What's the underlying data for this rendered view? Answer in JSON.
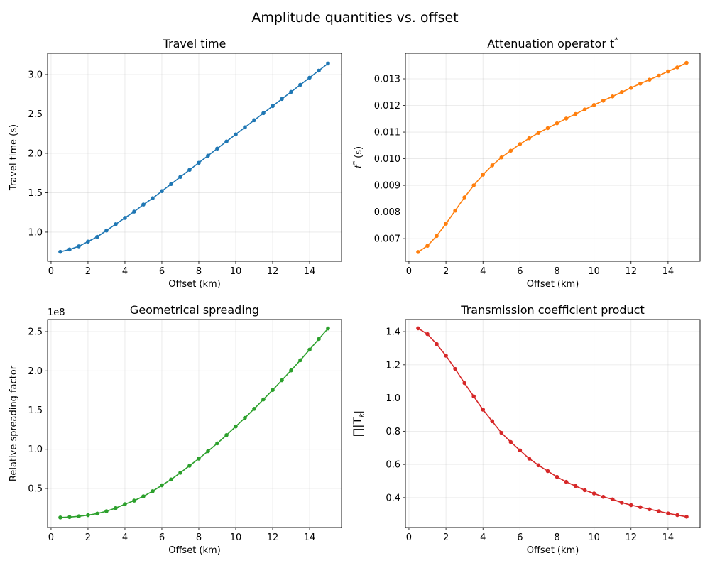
{
  "suptitle": "Amplitude quantities vs. offset",
  "chart_data": [
    {
      "type": "line",
      "title": "Travel time",
      "xlabel": "Offset (km)",
      "ylabel": "Travel time (s)",
      "color": "#1f77b4",
      "grid": true,
      "xlim": [
        -0.19,
        15.73
      ],
      "ylim": [
        0.63,
        3.27
      ],
      "xticks": [
        0,
        2,
        4,
        6,
        8,
        10,
        12,
        14
      ],
      "yticks": [
        1.0,
        1.5,
        2.0,
        2.5,
        3.0
      ],
      "ytick_decimals": 1,
      "offset_label": "",
      "x": [
        0.5,
        1,
        1.5,
        2,
        2.5,
        3,
        3.5,
        4,
        4.5,
        5,
        5.5,
        6,
        6.5,
        7,
        7.5,
        8,
        8.5,
        9,
        9.5,
        10,
        10.5,
        11,
        11.5,
        12,
        12.5,
        13,
        13.5,
        14,
        14.5,
        15
      ],
      "y": [
        0.75,
        0.78,
        0.82,
        0.88,
        0.94,
        1.02,
        1.1,
        1.18,
        1.26,
        1.35,
        1.43,
        1.52,
        1.61,
        1.7,
        1.79,
        1.88,
        1.97,
        2.06,
        2.15,
        2.24,
        2.33,
        2.42,
        2.51,
        2.6,
        2.69,
        2.78,
        2.87,
        2.96,
        3.05,
        3.14
      ]
    },
    {
      "type": "line",
      "title": "Attenuation operator t",
      "title_sup": "*",
      "xlabel": "Offset (km)",
      "ylabel": "t",
      "ylabel_sup": "*",
      "ylabel_suffix": " (s)",
      "color": "#ff7f0e",
      "grid": true,
      "xlim": [
        -0.19,
        15.73
      ],
      "ylim": [
        0.00615,
        0.01396
      ],
      "xticks": [
        0,
        2,
        4,
        6,
        8,
        10,
        12,
        14
      ],
      "yticks": [
        0.007,
        0.008,
        0.009,
        0.01,
        0.011,
        0.012,
        0.013
      ],
      "ytick_decimals": 3,
      "offset_label": "",
      "x": [
        0.5,
        1,
        1.5,
        2,
        2.5,
        3,
        3.5,
        4,
        4.5,
        5,
        5.5,
        6,
        6.5,
        7,
        7.5,
        8,
        8.5,
        9,
        9.5,
        10,
        10.5,
        11,
        11.5,
        12,
        12.5,
        13,
        13.5,
        14,
        14.5,
        15
      ],
      "y": [
        0.0065,
        0.00673,
        0.0071,
        0.00756,
        0.00805,
        0.00855,
        0.009,
        0.0094,
        0.00975,
        0.01005,
        0.0103,
        0.01055,
        0.01077,
        0.01097,
        0.01115,
        0.01133,
        0.01151,
        0.01168,
        0.01185,
        0.01202,
        0.01218,
        0.01234,
        0.0125,
        0.01266,
        0.01282,
        0.01297,
        0.01312,
        0.01328,
        0.01343,
        0.0136
      ]
    },
    {
      "type": "line",
      "title": "Geometrical spreading",
      "xlabel": "Offset (km)",
      "ylabel": "Relative spreading factor",
      "color": "#2ca02c",
      "grid": true,
      "xlim": [
        -0.19,
        15.73
      ],
      "ylim": [
        0.002,
        2.654
      ],
      "xticks": [
        0,
        2,
        4,
        6,
        8,
        10,
        12,
        14
      ],
      "yticks": [
        0.5,
        1.0,
        1.5,
        2.0,
        2.5
      ],
      "ytick_decimals": 1,
      "offset_label": "1e8",
      "x": [
        0.5,
        1,
        1.5,
        2,
        2.5,
        3,
        3.5,
        4,
        4.5,
        5,
        5.5,
        6,
        6.5,
        7,
        7.5,
        8,
        8.5,
        9,
        9.5,
        10,
        10.5,
        11,
        11.5,
        12,
        12.5,
        13,
        13.5,
        14,
        14.5,
        15
      ],
      "y": [
        0.13,
        0.135,
        0.145,
        0.16,
        0.18,
        0.21,
        0.25,
        0.3,
        0.345,
        0.4,
        0.465,
        0.54,
        0.615,
        0.7,
        0.79,
        0.88,
        0.975,
        1.075,
        1.18,
        1.29,
        1.4,
        1.515,
        1.635,
        1.755,
        1.88,
        2.005,
        2.135,
        2.27,
        2.405,
        2.54
      ]
    },
    {
      "type": "line",
      "title": "Transmission coefficient product",
      "xlabel": "Offset (km)",
      "ylabel": "∏|T",
      "ylabel_sub": "k",
      "ylabel_suffix": "|",
      "color": "#d62728",
      "grid": true,
      "xlim": [
        -0.19,
        15.73
      ],
      "ylim": [
        0.22,
        1.473
      ],
      "xticks": [
        0,
        2,
        4,
        6,
        8,
        10,
        12,
        14
      ],
      "yticks": [
        0.4,
        0.6,
        0.8,
        1.0,
        1.2,
        1.4
      ],
      "ytick_decimals": 1,
      "offset_label": "",
      "x": [
        0.5,
        1,
        1.5,
        2,
        2.5,
        3,
        3.5,
        4,
        4.5,
        5,
        5.5,
        6,
        6.5,
        7,
        7.5,
        8,
        8.5,
        9,
        9.5,
        10,
        10.5,
        11,
        11.5,
        12,
        12.5,
        13,
        13.5,
        14,
        14.5,
        15
      ],
      "y": [
        1.42,
        1.385,
        1.325,
        1.255,
        1.175,
        1.09,
        1.01,
        0.93,
        0.86,
        0.79,
        0.735,
        0.685,
        0.635,
        0.595,
        0.56,
        0.525,
        0.495,
        0.47,
        0.445,
        0.425,
        0.405,
        0.39,
        0.37,
        0.355,
        0.343,
        0.33,
        0.318,
        0.305,
        0.295,
        0.285
      ]
    }
  ]
}
